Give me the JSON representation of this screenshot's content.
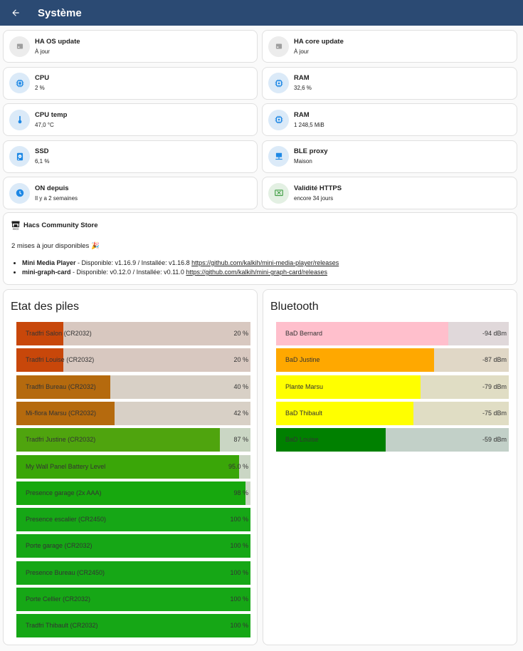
{
  "header": {
    "title": "Système"
  },
  "tiles": [
    {
      "name": "HA OS update",
      "state": "À jour",
      "icon": "package-icon",
      "tone": "grey"
    },
    {
      "name": "HA core update",
      "state": "À jour",
      "icon": "package-icon",
      "tone": "grey"
    },
    {
      "name": "CPU",
      "state": "2 %",
      "icon": "cpu-icon",
      "tone": "blue"
    },
    {
      "name": "RAM",
      "state": "32,6 %",
      "icon": "memory-icon",
      "tone": "blue"
    },
    {
      "name": "CPU temp",
      "state": "47,0 °C",
      "icon": "thermometer-icon",
      "tone": "blue"
    },
    {
      "name": "RAM",
      "state": "1 248,5 MiB",
      "icon": "memory-icon",
      "tone": "blue"
    },
    {
      "name": "SSD",
      "state": "6,1 %",
      "icon": "harddisk-icon",
      "tone": "blue"
    },
    {
      "name": "BLE proxy",
      "state": "Maison",
      "icon": "server-network-icon",
      "tone": "blue"
    },
    {
      "name": "ON depuis",
      "state": "Il y a 2 semaines",
      "icon": "clock-icon",
      "tone": "blue"
    },
    {
      "name": "Validité HTTPS",
      "state": "encore 34 jours",
      "icon": "certificate-icon",
      "tone": "green"
    }
  ],
  "hacs": {
    "title": "Hacs Community Store",
    "message": "2 mises à jour disponibles 🎉",
    "updates": [
      {
        "name": "Mini Media Player",
        "text": " - Disponible: v1.16.9 / Installée: v1.16.8 ",
        "url": "https://github.com/kalkih/mini-media-player/releases"
      },
      {
        "name": "mini-graph-card",
        "text": " - Disponible: v0.12.0 / Installée: v0.11.0 ",
        "url": "https://github.com/kalkih/mini-graph-card/releases"
      }
    ]
  },
  "batteries": {
    "title": "Etat des piles",
    "items": [
      {
        "name": "Tradfri Salon (CR2032)",
        "value": 20,
        "display": "20 %",
        "color": "#c8470a",
        "bg": "#d8c8c0"
      },
      {
        "name": "Tradfri Louise (CR2032)",
        "value": 20,
        "display": "20 %",
        "color": "#c8470a",
        "bg": "#d8c8c0"
      },
      {
        "name": "Tradfri Bureau (CR2032)",
        "value": 40,
        "display": "40 %",
        "color": "#b56a0e",
        "bg": "#d8d0c6"
      },
      {
        "name": "Mi-flora Marsu (CR2032)",
        "value": 42,
        "display": "42 %",
        "color": "#b56a0e",
        "bg": "#d8d0c6"
      },
      {
        "name": "Tradfri Justine (CR2032)",
        "value": 87,
        "display": "87 %",
        "color": "#4fa40e",
        "bg": "#cad6c4"
      },
      {
        "name": "My Wall Panel Battery Level",
        "value": 95,
        "display": "95.0 %",
        "color": "#3aa608",
        "bg": "#cad6c4"
      },
      {
        "name": "Presence garage (2x AAA)",
        "value": 98,
        "display": "98 %",
        "color": "#17a80e",
        "bg": "#cad6c4"
      },
      {
        "name": "Presence escalier (CR2450)",
        "value": 100,
        "display": "100 %",
        "color": "#16a716",
        "bg": "#cad6c4"
      },
      {
        "name": "Porte garage (CR2032)",
        "value": 100,
        "display": "100 %",
        "color": "#16a716",
        "bg": "#cad6c4"
      },
      {
        "name": "Presence Bureau (CR2450)",
        "value": 100,
        "display": "100 %",
        "color": "#16a716",
        "bg": "#cad6c4"
      },
      {
        "name": "Porte Cellier (CR2032)",
        "value": 100,
        "display": "100 %",
        "color": "#16a716",
        "bg": "#cad6c4"
      },
      {
        "name": "Tradfri Thibault (CR2032)",
        "value": 100,
        "display": "100 %",
        "color": "#16a716",
        "bg": "#cad6c4"
      }
    ]
  },
  "bluetooth": {
    "title": "Bluetooth",
    "fill_fraction": [
      0.74,
      0.68,
      0.62,
      0.59,
      0.47
    ],
    "items": [
      {
        "name": "BaD Bernard",
        "display": "-94 dBm",
        "color": "#ffbfcc",
        "bg": "#e0d8da"
      },
      {
        "name": "BaD Justine",
        "display": "-87 dBm",
        "color": "#ffa800",
        "bg": "#e0d7c6"
      },
      {
        "name": "Plante Marsu",
        "display": "-79 dBm",
        "color": "#ffff00",
        "bg": "#e0ddc4"
      },
      {
        "name": "BaD Thibault",
        "display": "-75 dBm",
        "color": "#ffff00",
        "bg": "#e0ddc4"
      },
      {
        "name": "BaD Louise",
        "display": "-59 dBm",
        "color": "#008000",
        "bg": "#c2d0c8"
      }
    ]
  },
  "colors": {
    "header": "#2b4a73",
    "icon_blue": "#1e88e5",
    "icon_grey": "#9e9e9e",
    "icon_green": "#43a047"
  }
}
